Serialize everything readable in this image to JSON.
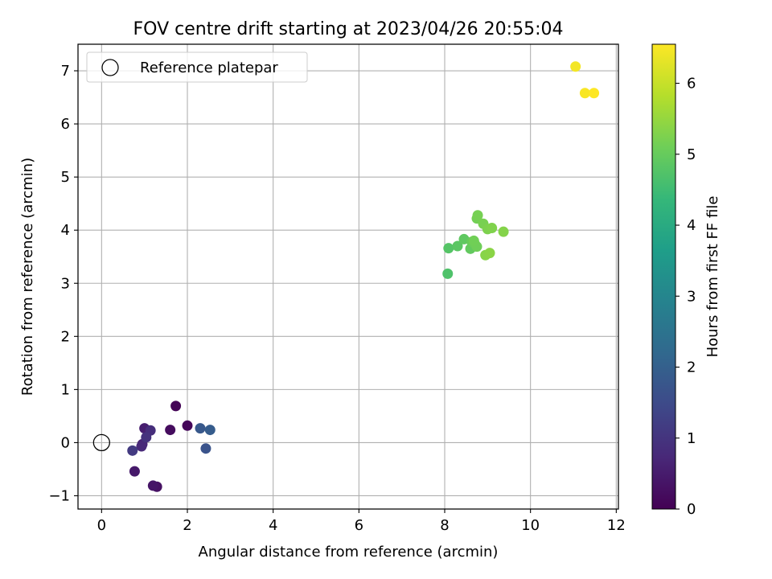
{
  "chart_data": {
    "type": "scatter",
    "title": "FOV centre drift starting at 2023/04/26 20:55:04",
    "xlabel": "Angular distance from reference (arcmin)",
    "ylabel": "Rotation from reference (arcmin)",
    "xlim": [
      -0.55,
      12.05
    ],
    "ylim": [
      -1.25,
      7.5
    ],
    "xticks": [
      0,
      2,
      4,
      6,
      8,
      10,
      12
    ],
    "yticks": [
      -1,
      0,
      1,
      2,
      3,
      4,
      5,
      6,
      7
    ],
    "grid": true,
    "legend": {
      "placement": "upper-left",
      "entries": [
        "Reference platepar"
      ]
    },
    "reference_point": {
      "x": 0,
      "y": 0
    },
    "colorbar": {
      "label": "Hours from first FF file",
      "colormap": "viridis",
      "range": [
        0,
        6.55
      ],
      "ticks": [
        0,
        1,
        2,
        3,
        4,
        5,
        6
      ]
    },
    "points": [
      {
        "x": 1.73,
        "y": 0.69,
        "h": 0.05
      },
      {
        "x": 2.0,
        "y": 0.32,
        "h": 0.12
      },
      {
        "x": 1.6,
        "y": 0.24,
        "h": 0.2
      },
      {
        "x": 1.29,
        "y": -0.83,
        "h": 0.3
      },
      {
        "x": 1.2,
        "y": -0.81,
        "h": 0.38
      },
      {
        "x": 0.77,
        "y": -0.54,
        "h": 0.45
      },
      {
        "x": 1.0,
        "y": 0.27,
        "h": 0.55
      },
      {
        "x": 0.95,
        "y": -0.03,
        "h": 0.65
      },
      {
        "x": 0.93,
        "y": -0.07,
        "h": 0.75
      },
      {
        "x": 1.14,
        "y": 0.23,
        "h": 0.85
      },
      {
        "x": 1.04,
        "y": 0.1,
        "h": 0.95
      },
      {
        "x": 0.72,
        "y": -0.15,
        "h": 1.12
      },
      {
        "x": 2.43,
        "y": -0.11,
        "h": 1.7
      },
      {
        "x": 2.3,
        "y": 0.27,
        "h": 1.8
      },
      {
        "x": 2.53,
        "y": 0.24,
        "h": 1.9
      },
      {
        "x": 8.07,
        "y": 3.18,
        "h": 4.7
      },
      {
        "x": 8.09,
        "y": 3.66,
        "h": 4.78
      },
      {
        "x": 8.3,
        "y": 3.7,
        "h": 4.85
      },
      {
        "x": 8.45,
        "y": 3.83,
        "h": 4.9
      },
      {
        "x": 8.6,
        "y": 3.65,
        "h": 4.95
      },
      {
        "x": 8.63,
        "y": 3.78,
        "h": 5.0
      },
      {
        "x": 8.7,
        "y": 3.74,
        "h": 5.05
      },
      {
        "x": 8.75,
        "y": 3.69,
        "h": 5.1
      },
      {
        "x": 8.68,
        "y": 3.8,
        "h": 5.12
      },
      {
        "x": 8.75,
        "y": 4.22,
        "h": 5.15
      },
      {
        "x": 8.77,
        "y": 4.28,
        "h": 5.18
      },
      {
        "x": 8.9,
        "y": 4.12,
        "h": 5.2
      },
      {
        "x": 9.0,
        "y": 4.02,
        "h": 5.25
      },
      {
        "x": 9.1,
        "y": 4.04,
        "h": 5.28
      },
      {
        "x": 9.37,
        "y": 3.97,
        "h": 5.32
      },
      {
        "x": 8.95,
        "y": 3.53,
        "h": 5.35
      },
      {
        "x": 9.05,
        "y": 3.57,
        "h": 5.38
      },
      {
        "x": 11.05,
        "y": 7.08,
        "h": 6.45
      },
      {
        "x": 11.27,
        "y": 6.58,
        "h": 6.5
      },
      {
        "x": 11.48,
        "y": 6.58,
        "h": 6.55
      }
    ]
  }
}
